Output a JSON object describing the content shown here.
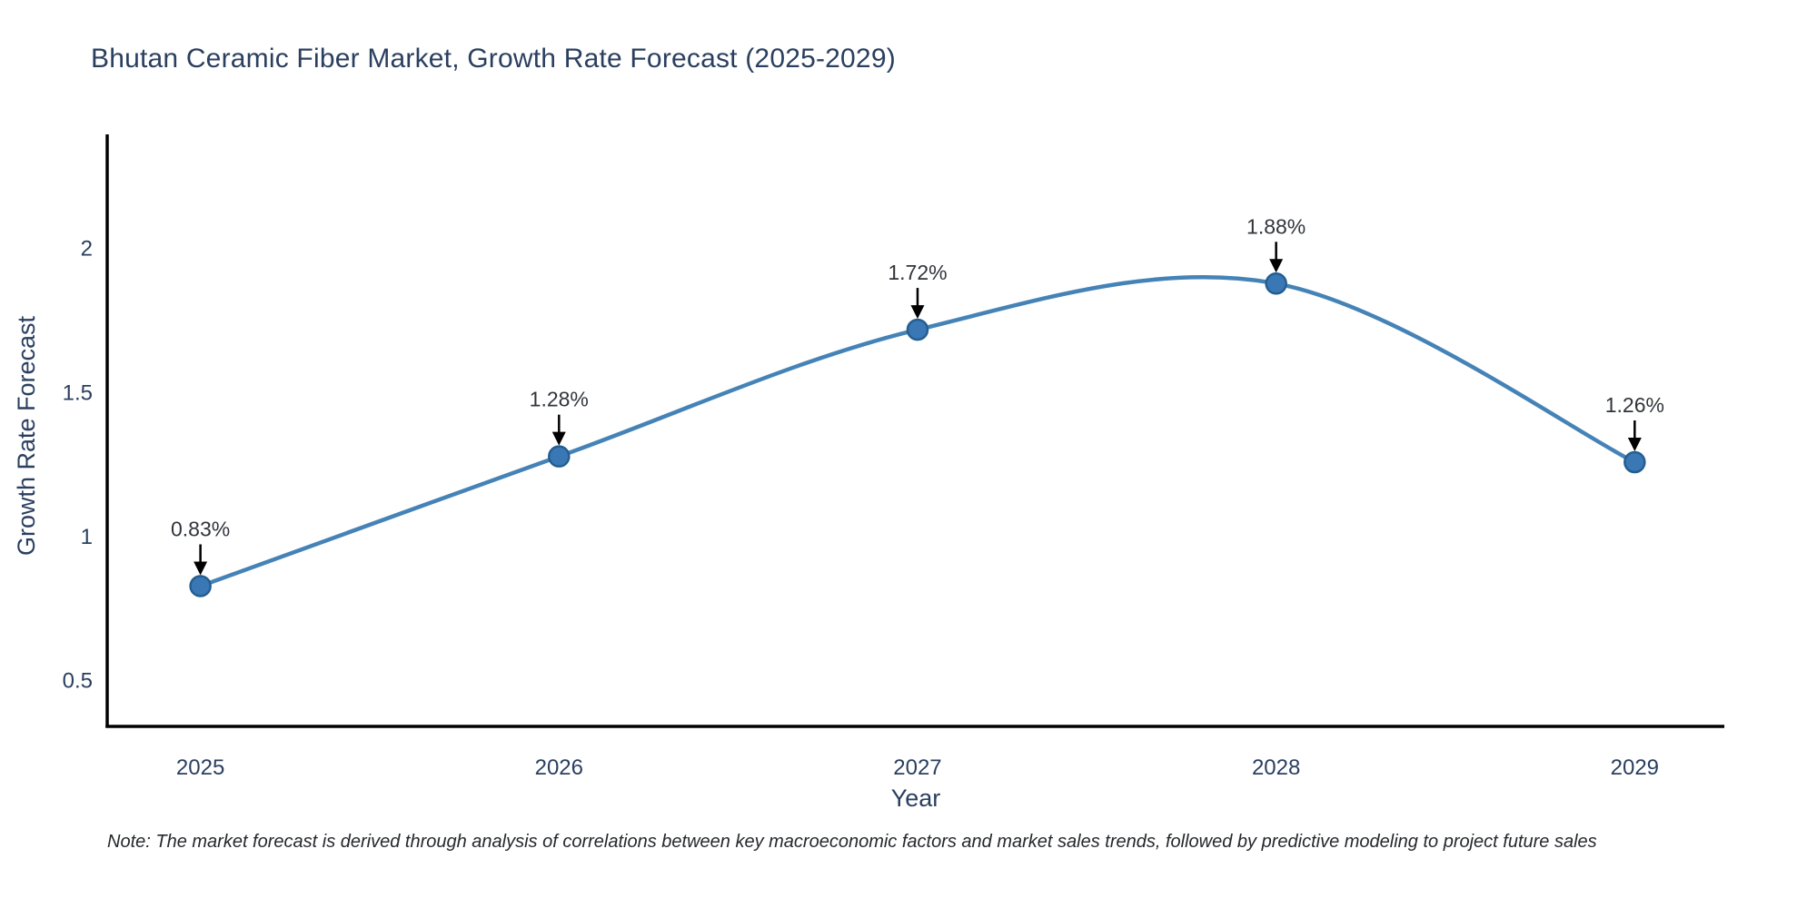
{
  "note": "Note: The market forecast is derived through analysis of correlations between key macroeconomic factors and market sales trends, followed by predictive modeling to project future sales",
  "chart_data": {
    "type": "line",
    "title": "Bhutan Ceramic Fiber Market, Growth Rate Forecast (2025-2029)",
    "xlabel": "Year",
    "ylabel": "Growth Rate Forecast",
    "x": [
      2025,
      2026,
      2027,
      2028,
      2029
    ],
    "y": [
      0.83,
      1.28,
      1.72,
      1.88,
      1.26
    ],
    "point_labels": [
      "0.83%",
      "1.28%",
      "1.72%",
      "1.88%",
      "1.26%"
    ],
    "xticks": [
      "2025",
      "2026",
      "2027",
      "2028",
      "2029"
    ],
    "yticks": [
      0.5,
      1,
      1.5,
      2
    ],
    "ytick_labels": [
      "0.5",
      "1",
      "1.5",
      "2"
    ],
    "xlim": [
      2024.74,
      2029.25
    ],
    "ylim": [
      0.343,
      2.36
    ],
    "grid": false,
    "legend": false,
    "smooth": true,
    "colors": {
      "line": "#4583b7",
      "marker_fill": "#3a78b5",
      "marker_edge": "#245e91",
      "axis_line": "#000000",
      "axis_text": "#2a3f5f",
      "annotation_text": "#31353b",
      "arrow": "#000000"
    }
  }
}
